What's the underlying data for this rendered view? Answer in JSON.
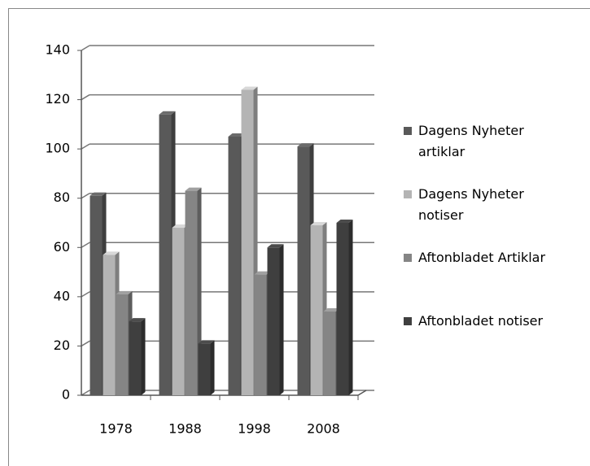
{
  "chart_data": {
    "type": "bar",
    "categories": [
      "1978",
      "1988",
      "1998",
      "2008"
    ],
    "series": [
      {
        "name": "Dagens Nyheter artiklar",
        "color": "#595959",
        "values": [
          81,
          114,
          105,
          101
        ]
      },
      {
        "name": "Dagens Nyheter notiser",
        "color": "#b4b4b4",
        "values": [
          57,
          68,
          124,
          69
        ]
      },
      {
        "name": "Aftonbladet Artiklar",
        "color": "#858585",
        "values": [
          41,
          83,
          49,
          34
        ]
      },
      {
        "name": "Aftonbladet notiser",
        "color": "#3f3f3f",
        "values": [
          30,
          21,
          60,
          70
        ]
      }
    ],
    "ylim": [
      0,
      140
    ],
    "yticks": [
      0,
      20,
      40,
      60,
      80,
      100,
      120,
      140
    ],
    "grid": true,
    "legend": "right"
  }
}
